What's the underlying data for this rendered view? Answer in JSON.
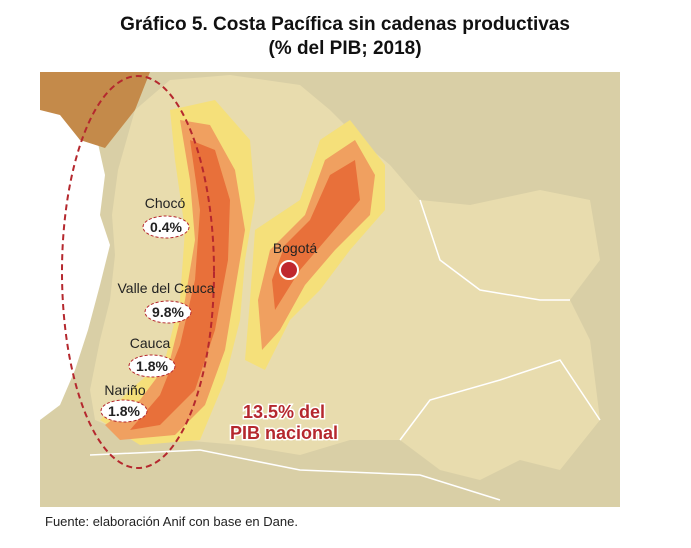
{
  "header": {
    "title": "Gráfico 5. Costa Pacífica sin cadenas productivas",
    "subtitle": "(% del PIB; 2018)"
  },
  "regions": [
    {
      "name": "Chocó",
      "share": "0.4%"
    },
    {
      "name": "Valle del Cauca",
      "share": "9.8%"
    },
    {
      "name": "Cauca",
      "share": "1.8%"
    },
    {
      "name": "Nariño",
      "share": "1.8%"
    }
  ],
  "capital": "Bogotá",
  "total": {
    "line1": "13.5% del",
    "line2": "PIB nacional"
  },
  "source": "Fuente: elaboración Anif con base en Dane."
}
